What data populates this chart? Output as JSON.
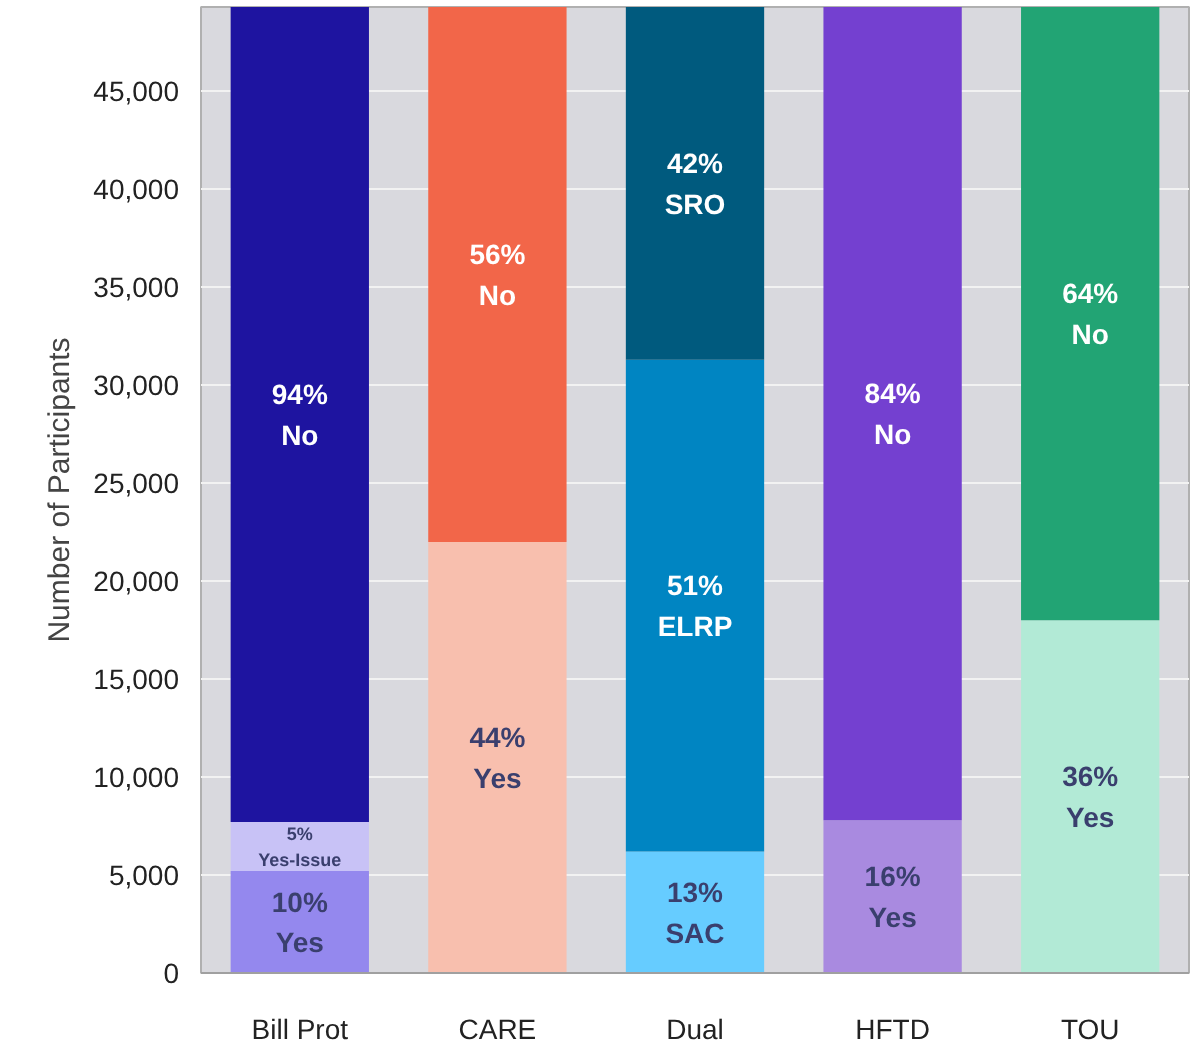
{
  "chart_data": {
    "type": "bar",
    "stacked": true,
    "ylabel": "Number of Participants",
    "categories": [
      "Bill Prot",
      "CARE",
      "Dual",
      "HFTD",
      "TOU"
    ],
    "series": [
      {
        "colors": [
          "#9488ee",
          "#f8bfae",
          "#66ccff",
          "#a98ae0",
          "#b2ead6"
        ],
        "values": [
          5200,
          22000,
          6200,
          7800,
          18000
        ]
      },
      {
        "colors": [
          "#c8c2f6",
          null,
          "#0085c2",
          null,
          null
        ],
        "values": [
          2500,
          null,
          25100,
          null,
          null
        ]
      },
      {
        "colors": [
          "#1e14a0",
          "#f26649",
          "#005a7e",
          "#7440d0",
          "#22a474"
        ],
        "values": [
          41600,
          27300,
          18000,
          41500,
          31300
        ]
      }
    ],
    "annotations": [
      "10%\nYes",
      "44%\nYes",
      "13%\nSAC",
      "16%\nYes",
      "36%\nYes",
      "5%\nYes-Issue",
      "51%\nELRP",
      "94%\nNo",
      "56%\nNo",
      "42%\nSRO",
      "84%\nNo",
      "64%\nNo"
    ],
    "ylim": [
      0,
      49300
    ],
    "yticks": [
      {
        "value": 0,
        "label": "0"
      },
      {
        "value": 5000,
        "label": "5,000"
      },
      {
        "value": 10000,
        "label": "10,000"
      },
      {
        "value": 15000,
        "label": "15,000"
      },
      {
        "value": 20000,
        "label": "20,000"
      },
      {
        "value": 25000,
        "label": "25,000"
      },
      {
        "value": 30000,
        "label": "30,000"
      },
      {
        "value": 35000,
        "label": "35,000"
      },
      {
        "value": 40000,
        "label": "40,000"
      },
      {
        "value": 45000,
        "label": "45,000"
      }
    ],
    "grid": "y"
  }
}
